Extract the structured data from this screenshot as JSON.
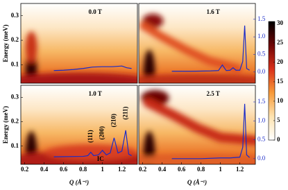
{
  "chart_data": [
    {
      "type": "line",
      "title": "0.0 T",
      "ylabel": "Energy (meV)",
      "xlim": [
        0.16,
        1.36
      ],
      "ylim": [
        0.025,
        0.35
      ],
      "yticks": [
        0.1,
        0.2,
        0.3
      ],
      "y2lim": [
        -0.32,
        1.95
      ],
      "series": [
        {
          "color": "#1a2bc8",
          "x": [
            0.5,
            0.6,
            0.7,
            0.8,
            0.9,
            1.0,
            1.1,
            1.2,
            1.25,
            1.3
          ],
          "values": [
            0.04,
            0.05,
            0.07,
            0.1,
            0.14,
            0.15,
            0.15,
            0.17,
            0.12,
            0.1
          ]
        }
      ]
    },
    {
      "type": "line",
      "title": "1.6 T",
      "xlim": [
        0.16,
        1.36
      ],
      "ylim": [
        0.025,
        0.35
      ],
      "y2lim": [
        -0.32,
        1.95
      ],
      "y2ticks": [
        {
          "value": 0,
          "label": "0.0"
        },
        0.5,
        {
          "value": 1,
          "label": "1.0"
        },
        1.5
      ],
      "series": [
        {
          "color": "#1a2bc8",
          "x": [
            0.5,
            0.7,
            0.9,
            0.98,
            1.02,
            1.06,
            1.1,
            1.13,
            1.16,
            1.2,
            1.23,
            1.25,
            1.27,
            1.3
          ],
          "values": [
            0.02,
            0.02,
            0.03,
            0.04,
            0.2,
            0.04,
            0.05,
            0.12,
            0.05,
            0.05,
            0.3,
            1.32,
            0.1,
            0.05
          ]
        }
      ]
    },
    {
      "type": "line",
      "title": "1.0 T",
      "ylabel": "Energy (meV)",
      "xlabel": "Q (Å⁻¹)",
      "xlim": [
        0.16,
        1.36
      ],
      "ylim": [
        0.025,
        0.35
      ],
      "yticks": [
        0.1,
        0.2,
        0.3
      ],
      "xticks": [
        0.2,
        0.4,
        0.6,
        0.8,
        1.0,
        1.2
      ],
      "y2lim": [
        -0.15,
        1.94
      ],
      "annotations": [
        "(111)",
        "(200)",
        "(210)",
        "(211)",
        "IC"
      ],
      "series": [
        {
          "color": "#1a2bc8",
          "x": [
            0.5,
            0.8,
            0.85,
            0.88,
            0.91,
            0.96,
            1.0,
            1.04,
            1.08,
            1.12,
            1.16,
            1.2,
            1.24,
            1.27,
            1.3
          ],
          "values": [
            0.05,
            0.06,
            0.08,
            0.17,
            0.08,
            0.1,
            0.22,
            0.1,
            0.15,
            0.55,
            0.15,
            0.2,
            0.75,
            0.12,
            0.08
          ]
        }
      ]
    },
    {
      "type": "line",
      "title": "2.5 T",
      "xlabel": "Q (Å⁻¹)",
      "xlim": [
        0.16,
        1.36
      ],
      "ylim": [
        0.025,
        0.35
      ],
      "xticks": [
        0.2,
        0.4,
        0.6,
        0.8,
        1.0,
        1.2
      ],
      "y2lim": [
        -0.15,
        1.94
      ],
      "y2ticks": [
        {
          "value": 0,
          "label": "0.0"
        },
        0.5,
        {
          "value": 1,
          "label": "1.0"
        },
        1.5
      ],
      "series": [
        {
          "color": "#1a2bc8",
          "x": [
            0.5,
            0.8,
            1.0,
            1.1,
            1.2,
            1.23,
            1.25,
            1.27,
            1.3
          ],
          "values": [
            0.0,
            0.0,
            0.02,
            0.02,
            0.04,
            0.3,
            1.45,
            0.1,
            0.03
          ]
        }
      ]
    },
    {
      "type": "colorbar",
      "zlim": [
        0,
        30.5
      ],
      "zticks": [
        0,
        5,
        10,
        15,
        20,
        25,
        30
      ]
    }
  ]
}
